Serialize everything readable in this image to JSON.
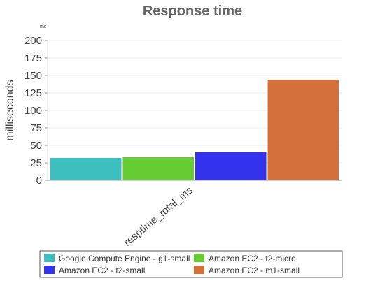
{
  "chart_data": {
    "type": "bar",
    "title": "Response time",
    "unit_note": "ms",
    "ylabel": "milliseconds",
    "ylim": [
      0,
      200
    ],
    "yticks": [
      0,
      25,
      50,
      75,
      100,
      125,
      150,
      175,
      200
    ],
    "categories": [
      "resptime_total_ms"
    ],
    "grid": true,
    "legend_position": "bottom",
    "series": [
      {
        "name": "Google Compute Engine - g1-small",
        "color": "#3dbfbf",
        "values": [
          32
        ]
      },
      {
        "name": "Amazon EC2 - t2-micro",
        "color": "#66cc33",
        "values": [
          33
        ]
      },
      {
        "name": "Amazon EC2 - t2-small",
        "color": "#3333ee",
        "values": [
          40
        ]
      },
      {
        "name": "Amazon EC2 - m1-small",
        "color": "#d4703c",
        "values": [
          144
        ]
      }
    ]
  }
}
